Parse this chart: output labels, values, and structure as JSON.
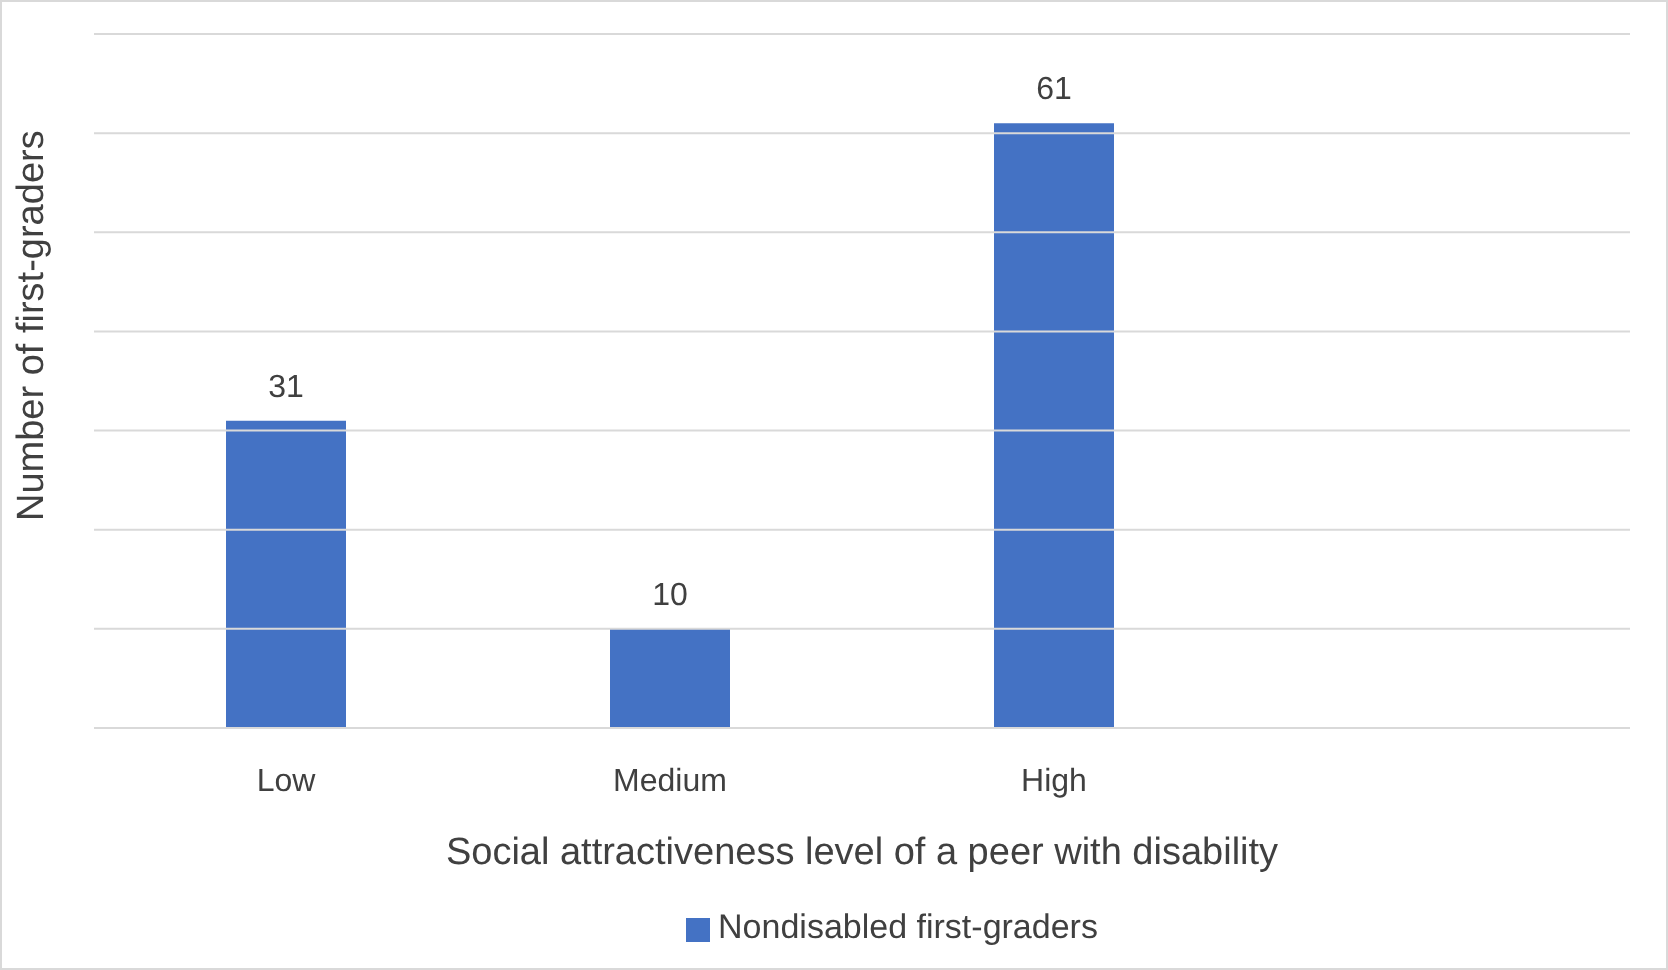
{
  "chart_data": {
    "type": "bar",
    "xlabel": "Social attractiveness level of a peer with disability",
    "ylabel": "Number of first-graders",
    "categories": [
      "Low",
      "Medium",
      "High",
      null
    ],
    "series": [
      {
        "name": "Nondisabled first-graders",
        "color": "#4472c4",
        "values": [
          31,
          10,
          61,
          null
        ]
      }
    ],
    "ylim": [
      0,
      70
    ],
    "yticks": [
      {
        "value": 0,
        "label": null
      },
      {
        "value": 10,
        "label": null
      },
      {
        "value": 20,
        "label": null
      },
      {
        "value": 30,
        "label": null
      },
      {
        "value": 40,
        "label": null
      },
      {
        "value": 50,
        "label": null
      },
      {
        "value": 60,
        "label": null
      },
      {
        "value": 70,
        "label": null
      }
    ],
    "tick_labels": "x",
    "grid": "y",
    "data_labels": true,
    "legend": "bottom"
  }
}
